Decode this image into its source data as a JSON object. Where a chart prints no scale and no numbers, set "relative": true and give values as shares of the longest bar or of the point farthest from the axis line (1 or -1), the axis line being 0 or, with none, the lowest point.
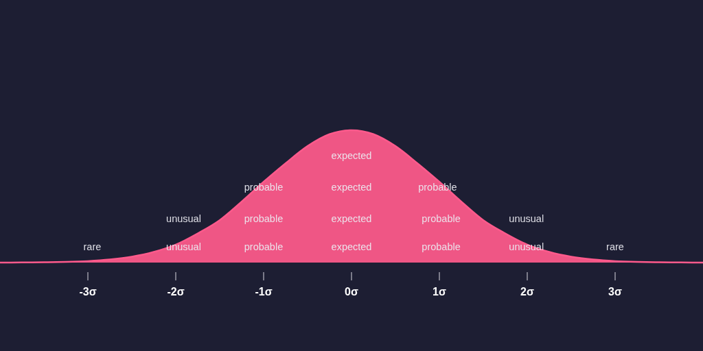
{
  "chart_data": {
    "type": "area",
    "relative": true,
    "color": "#ff5a8c",
    "x": [
      -4,
      -3.75,
      -3.5,
      -3.25,
      -3,
      -2.75,
      -2.5,
      -2.25,
      -2,
      -1.75,
      -1.5,
      -1.25,
      -1,
      -0.75,
      -0.5,
      -0.25,
      0,
      0.25,
      0.5,
      0.75,
      1,
      1.25,
      1.5,
      1.75,
      2,
      2.25,
      2.5,
      2.75,
      3,
      3.25,
      3.5,
      3.75,
      4
    ],
    "values": [
      0,
      0.001,
      0.002,
      0.005,
      0.011,
      0.023,
      0.044,
      0.08,
      0.135,
      0.22,
      0.32,
      0.46,
      0.61,
      0.75,
      0.88,
      0.97,
      1,
      0.97,
      0.88,
      0.75,
      0.61,
      0.46,
      0.32,
      0.22,
      0.135,
      0.08,
      0.044,
      0.023,
      0.011,
      0.005,
      0.002,
      0.001,
      0
    ],
    "xlim": [
      -4,
      4
    ],
    "xticks": [
      {
        "value": -3,
        "label": "-3σ"
      },
      {
        "value": -2,
        "label": "-2σ"
      },
      {
        "value": -1,
        "label": "-1σ"
      },
      {
        "value": 0,
        "label": "0σ"
      },
      {
        "value": 1,
        "label": "1σ"
      },
      {
        "value": 2,
        "label": "2σ"
      },
      {
        "value": 3,
        "label": "3σ"
      }
    ],
    "annotations": [
      "expected",
      "expected",
      "expected",
      "expected",
      "probable",
      "probable",
      "probable",
      "probable",
      "probable",
      "probable",
      "unusual",
      "unusual",
      "unusual",
      "unusual",
      "rare",
      "rare"
    ]
  }
}
